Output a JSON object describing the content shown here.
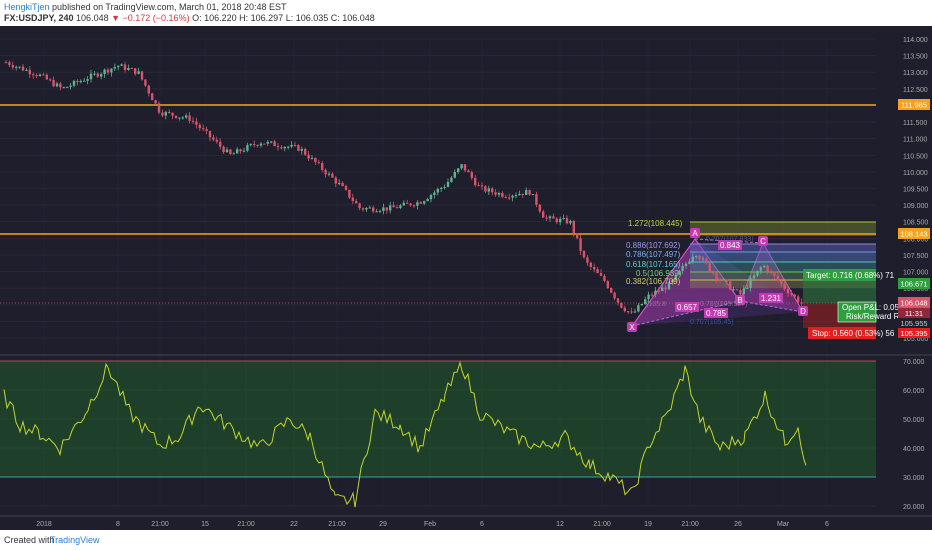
{
  "header": {
    "author": "HengkiTjen",
    "published": "published on TradingView.com, March 01, 2018 20:48 EST",
    "symbol": "FX:USDJPY, 240",
    "last": "106.048",
    "change": "▼ −0.172 (−0.16%)",
    "open": "O: 106.220",
    "high": "H: 106.297",
    "low": "L: 106.035",
    "close": "C: 106.048"
  },
  "price_axis": [
    "114.000",
    "113.500",
    "113.000",
    "112.500",
    "112.000",
    "111.500",
    "111.000",
    "110.500",
    "110.000",
    "109.500",
    "109.000",
    "108.500",
    "108.000",
    "107.500",
    "107.000",
    "106.500",
    "106.000",
    "105.500",
    "105.000"
  ],
  "price_tags": {
    "resistance1": "111.985",
    "resistance2": "108.143",
    "mid": "106.671",
    "current": "106.048",
    "countdown": "11:31",
    "low1": "105.955",
    "low2": "105.395"
  },
  "rsi_axis": [
    "70.000",
    "60.000",
    "50.000",
    "40.000",
    "30.000",
    "20.000"
  ],
  "time_axis": [
    "2018",
    "8",
    "21:00",
    "15",
    "21:00",
    "22",
    "21:00",
    "29",
    "Feb",
    "6",
    "12",
    "21:00",
    "19",
    "21:00",
    "26",
    "Mar",
    "6"
  ],
  "pattern": {
    "points": [
      "X",
      "A",
      "B",
      "C",
      "D"
    ],
    "fib_labels": [
      "1.272(108.445)",
      "0.886(107.692)",
      "0.786(107.497)",
      "0.618(107.165)",
      "0.5(106.939)",
      "0.382(106.709)"
    ],
    "ratios": [
      "0.843",
      "0.657",
      "0.785",
      "1.231"
    ],
    "faded_labels": [
      "0.707(107.833)",
      "(105.8",
      "0.707(105.527)",
      "0.707(105.45)"
    ]
  },
  "position": {
    "target": "Target: 0.716 (0.68%) 71",
    "pnl": "Open P&L: 0.05",
    "rr": "Risk/Reward R",
    "stop": "Stop: 0.560 (0.53%) 56"
  },
  "footer": {
    "created": "Created with",
    "brand": "TradingView"
  },
  "colors": {
    "background": "#1e1e2c",
    "up": "#5fb38f",
    "down": "#d9536a",
    "resistance": "#f7a21b",
    "rsi": "#c5d42a",
    "target": "#2e9e3e",
    "stop": "#e02020"
  }
}
